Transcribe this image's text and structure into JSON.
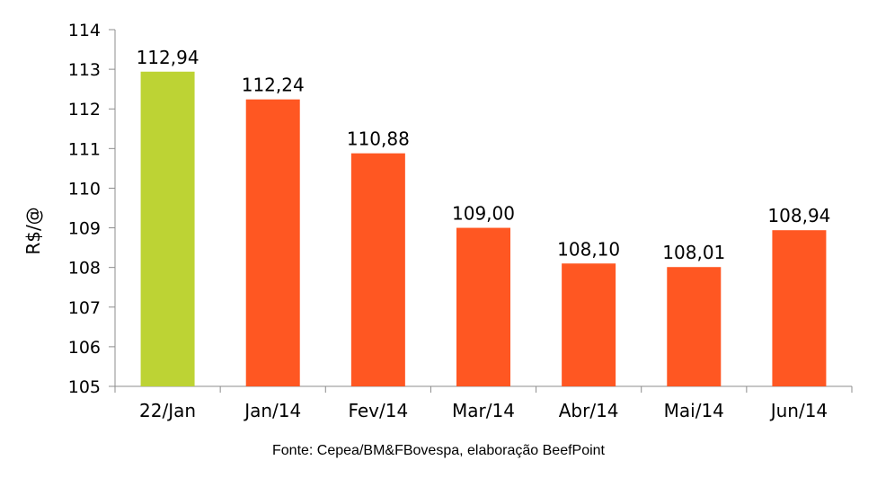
{
  "chart_data": {
    "type": "bar",
    "categories": [
      "22/Jan",
      "Jan/14",
      "Fev/14",
      "Mar/14",
      "Abr/14",
      "Mai/14",
      "Jun/14"
    ],
    "values": [
      112.94,
      112.24,
      110.88,
      109.0,
      108.1,
      108.01,
      108.94
    ],
    "value_labels": [
      "112,94",
      "112,24",
      "110,88",
      "109,00",
      "108,10",
      "108,01",
      "108,94"
    ],
    "ylabel": "R$/@",
    "ylim": [
      105,
      114
    ],
    "yticks": [
      105,
      106,
      107,
      108,
      109,
      110,
      111,
      112,
      113,
      114
    ],
    "grid": false,
    "legend": "none",
    "colors": {
      "highlight": "#BDD334",
      "bar": "#FF5722",
      "axis": "#8C8C8C"
    },
    "highlight_index": 0
  },
  "source_note": "Fonte: Cepea/BM&FBovespa, elaboração BeefPoint"
}
